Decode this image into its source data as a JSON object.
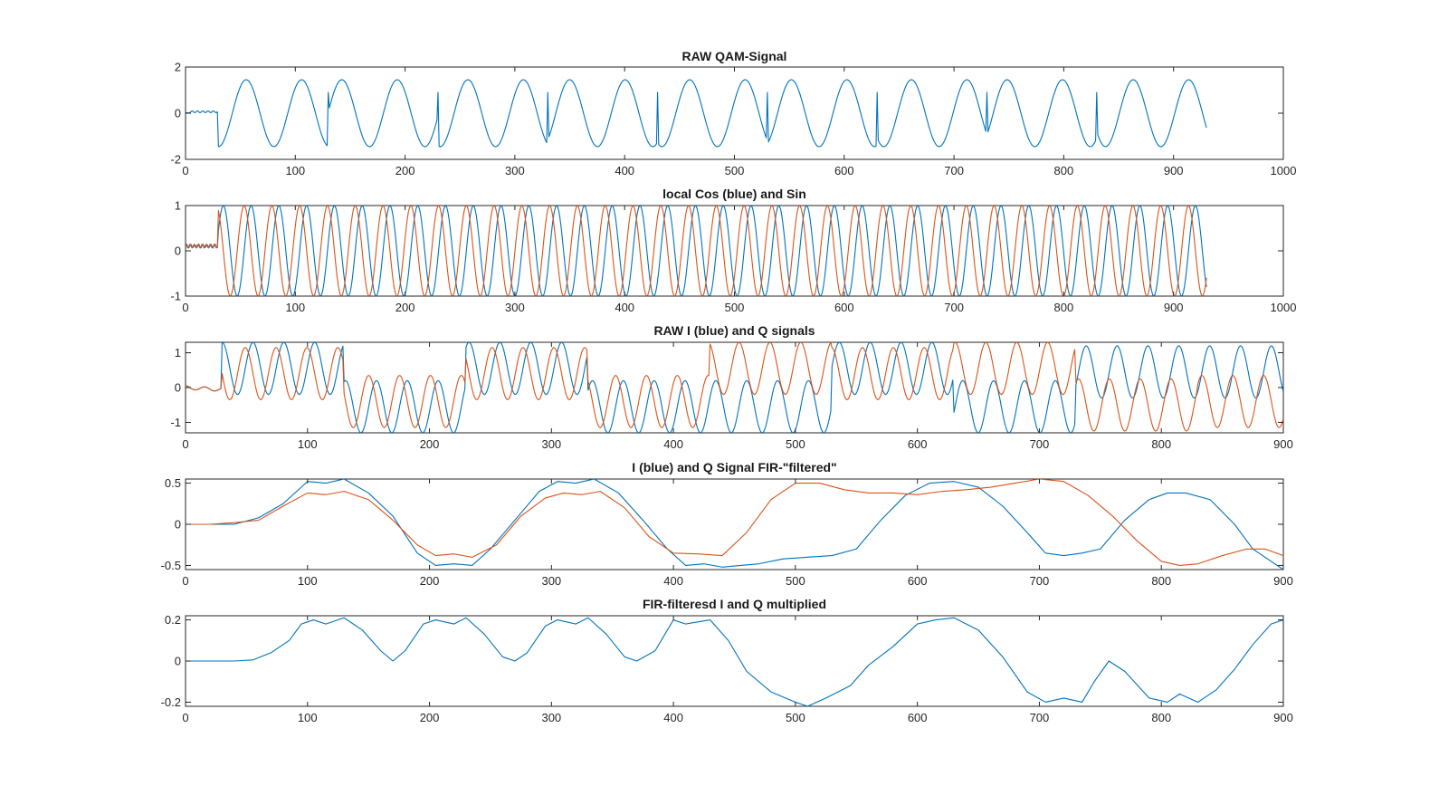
{
  "figure": {
    "background": "#ffffff"
  },
  "chart_data": [
    {
      "type": "line",
      "title": "RAW QAM-Signal",
      "xlim": [
        0,
        1000
      ],
      "ylim": [
        -2,
        2
      ],
      "xticks": [
        0,
        100,
        200,
        300,
        400,
        500,
        600,
        700,
        800,
        900,
        1000
      ],
      "yticks": [
        -2,
        0,
        2
      ],
      "grid": false,
      "legend": "none",
      "series": [
        {
          "color": "#0072BD",
          "signal": {
            "model": "qam_raw",
            "x_start": 0,
            "x_end": 930,
            "step": 1,
            "startup_end": 30,
            "startup_level": 0.1,
            "amplitude": 1.45,
            "period": 50.5,
            "jump_x": [
              130,
              230,
              330,
              430,
              530,
              630,
              730,
              830
            ]
          }
        }
      ]
    },
    {
      "type": "line",
      "title": "local Cos (blue) and Sin",
      "xlim": [
        0,
        1000
      ],
      "ylim": [
        -1,
        1
      ],
      "xticks": [
        0,
        100,
        200,
        300,
        400,
        500,
        600,
        700,
        800,
        900,
        1000
      ],
      "yticks": [
        -1,
        0,
        1
      ],
      "grid": false,
      "legend": "none",
      "series": [
        {
          "color": "#0072BD",
          "signal": {
            "model": "local_cos",
            "x_start": 0,
            "x_end": 930,
            "step": 1,
            "startup_end": 30,
            "startup_level": 0.15,
            "amplitude": 1,
            "period": 25.3
          }
        },
        {
          "color": "#D95319",
          "signal": {
            "model": "local_sin",
            "x_start": 0,
            "x_end": 930,
            "step": 1,
            "startup_end": 30,
            "startup_level": 0.15,
            "amplitude": 1,
            "period": 25.3
          }
        }
      ]
    },
    {
      "type": "line",
      "title": "RAW I (blue) and Q signals",
      "xlim": [
        0,
        900
      ],
      "ylim": [
        -1.3,
        1.3
      ],
      "xticks": [
        0,
        100,
        200,
        300,
        400,
        500,
        600,
        700,
        800,
        900
      ],
      "yticks": [
        -1,
        0,
        1
      ],
      "grid": false,
      "legend": "none",
      "series": [
        {
          "color": "#0072BD",
          "signal": {
            "model": "raw_i",
            "x_start": 0,
            "x_end": 900,
            "step": 1,
            "symbol_breaks": [
              30,
              130,
              230,
              330,
              430,
              530,
              630,
              730,
              830,
              900
            ],
            "symbol_levels": [
              0.55,
              -0.55,
              0.55,
              -0.55,
              -0.55,
              0.55,
              -0.55,
              0.45,
              0.45
            ],
            "period": 25.3
          }
        },
        {
          "color": "#D95319",
          "signal": {
            "model": "raw_q",
            "x_start": 0,
            "x_end": 900,
            "step": 1,
            "symbol_breaks": [
              30,
              130,
              230,
              330,
              430,
              530,
              630,
              730,
              830,
              900
            ],
            "symbol_levels": [
              0.4,
              -0.4,
              0.4,
              -0.4,
              0.55,
              0.4,
              0.55,
              -0.5,
              -0.4
            ],
            "period": 25.3
          }
        }
      ]
    },
    {
      "type": "line",
      "title": "I (blue) and Q Signal FIR-\"filtered\"",
      "xlim": [
        0,
        900
      ],
      "ylim": [
        -0.55,
        0.55
      ],
      "xticks": [
        0,
        100,
        200,
        300,
        400,
        500,
        600,
        700,
        800,
        900
      ],
      "yticks": [
        -0.5,
        0,
        0.5
      ],
      "grid": false,
      "legend": "none",
      "series": [
        {
          "color": "#0072BD",
          "points": [
            [
              0,
              0
            ],
            [
              20,
              0
            ],
            [
              40,
              0
            ],
            [
              60,
              0.08
            ],
            [
              80,
              0.25
            ],
            [
              100,
              0.52
            ],
            [
              115,
              0.5
            ],
            [
              130,
              0.55
            ],
            [
              150,
              0.38
            ],
            [
              170,
              0.1
            ],
            [
              190,
              -0.35
            ],
            [
              205,
              -0.5
            ],
            [
              220,
              -0.48
            ],
            [
              235,
              -0.5
            ],
            [
              250,
              -0.3
            ],
            [
              270,
              0.05
            ],
            [
              290,
              0.4
            ],
            [
              305,
              0.52
            ],
            [
              320,
              0.5
            ],
            [
              335,
              0.55
            ],
            [
              355,
              0.38
            ],
            [
              375,
              0.05
            ],
            [
              395,
              -0.3
            ],
            [
              410,
              -0.5
            ],
            [
              425,
              -0.48
            ],
            [
              440,
              -0.52
            ],
            [
              455,
              -0.5
            ],
            [
              470,
              -0.48
            ],
            [
              490,
              -0.42
            ],
            [
              510,
              -0.4
            ],
            [
              530,
              -0.38
            ],
            [
              550,
              -0.3
            ],
            [
              570,
              0.05
            ],
            [
              590,
              0.35
            ],
            [
              610,
              0.5
            ],
            [
              630,
              0.52
            ],
            [
              650,
              0.45
            ],
            [
              670,
              0.22
            ],
            [
              690,
              -0.1
            ],
            [
              705,
              -0.35
            ],
            [
              720,
              -0.38
            ],
            [
              735,
              -0.35
            ],
            [
              750,
              -0.3
            ],
            [
              770,
              0.05
            ],
            [
              790,
              0.3
            ],
            [
              805,
              0.38
            ],
            [
              820,
              0.38
            ],
            [
              840,
              0.3
            ],
            [
              860,
              0.0
            ],
            [
              875,
              -0.3
            ],
            [
              890,
              -0.45
            ],
            [
              900,
              -0.55
            ]
          ]
        },
        {
          "color": "#D95319",
          "points": [
            [
              0,
              0
            ],
            [
              20,
              0
            ],
            [
              40,
              0.02
            ],
            [
              60,
              0.05
            ],
            [
              80,
              0.22
            ],
            [
              100,
              0.38
            ],
            [
              115,
              0.36
            ],
            [
              130,
              0.4
            ],
            [
              150,
              0.3
            ],
            [
              170,
              0.05
            ],
            [
              190,
              -0.25
            ],
            [
              205,
              -0.38
            ],
            [
              220,
              -0.36
            ],
            [
              235,
              -0.4
            ],
            [
              255,
              -0.25
            ],
            [
              275,
              0.1
            ],
            [
              295,
              0.32
            ],
            [
              310,
              0.38
            ],
            [
              325,
              0.36
            ],
            [
              340,
              0.4
            ],
            [
              360,
              0.2
            ],
            [
              380,
              -0.15
            ],
            [
              400,
              -0.35
            ],
            [
              420,
              -0.36
            ],
            [
              440,
              -0.38
            ],
            [
              460,
              -0.1
            ],
            [
              480,
              0.3
            ],
            [
              500,
              0.5
            ],
            [
              520,
              0.5
            ],
            [
              540,
              0.42
            ],
            [
              560,
              0.38
            ],
            [
              580,
              0.38
            ],
            [
              600,
              0.36
            ],
            [
              620,
              0.4
            ],
            [
              640,
              0.42
            ],
            [
              660,
              0.45
            ],
            [
              680,
              0.5
            ],
            [
              700,
              0.55
            ],
            [
              720,
              0.52
            ],
            [
              740,
              0.35
            ],
            [
              760,
              0.1
            ],
            [
              780,
              -0.2
            ],
            [
              800,
              -0.45
            ],
            [
              815,
              -0.5
            ],
            [
              830,
              -0.48
            ],
            [
              850,
              -0.38
            ],
            [
              870,
              -0.3
            ],
            [
              885,
              -0.3
            ],
            [
              900,
              -0.38
            ]
          ]
        }
      ]
    },
    {
      "type": "line",
      "title": "FIR-filteresd I and Q multiplied",
      "xlim": [
        0,
        900
      ],
      "ylim": [
        -0.22,
        0.22
      ],
      "xticks": [
        0,
        100,
        200,
        300,
        400,
        500,
        600,
        700,
        800,
        900
      ],
      "yticks": [
        -0.2,
        0,
        0.2
      ],
      "grid": false,
      "legend": "none",
      "series": [
        {
          "color": "#0072BD",
          "points": [
            [
              0,
              0
            ],
            [
              20,
              0
            ],
            [
              40,
              0
            ],
            [
              55,
              0.005
            ],
            [
              70,
              0.04
            ],
            [
              85,
              0.1
            ],
            [
              95,
              0.18
            ],
            [
              105,
              0.2
            ],
            [
              115,
              0.18
            ],
            [
              130,
              0.21
            ],
            [
              145,
              0.15
            ],
            [
              160,
              0.05
            ],
            [
              170,
              0.0
            ],
            [
              180,
              0.05
            ],
            [
              195,
              0.18
            ],
            [
              205,
              0.2
            ],
            [
              220,
              0.18
            ],
            [
              230,
              0.21
            ],
            [
              245,
              0.13
            ],
            [
              260,
              0.02
            ],
            [
              270,
              0.0
            ],
            [
              280,
              0.04
            ],
            [
              295,
              0.17
            ],
            [
              305,
              0.2
            ],
            [
              320,
              0.18
            ],
            [
              330,
              0.21
            ],
            [
              345,
              0.13
            ],
            [
              360,
              0.02
            ],
            [
              370,
              0.0
            ],
            [
              385,
              0.05
            ],
            [
              400,
              0.2
            ],
            [
              410,
              0.18
            ],
            [
              430,
              0.2
            ],
            [
              445,
              0.1
            ],
            [
              460,
              -0.05
            ],
            [
              480,
              -0.15
            ],
            [
              500,
              -0.2
            ],
            [
              510,
              -0.22
            ],
            [
              525,
              -0.18
            ],
            [
              545,
              -0.12
            ],
            [
              560,
              -0.02
            ],
            [
              580,
              0.07
            ],
            [
              600,
              0.18
            ],
            [
              615,
              0.2
            ],
            [
              630,
              0.21
            ],
            [
              650,
              0.15
            ],
            [
              670,
              0.02
            ],
            [
              690,
              -0.15
            ],
            [
              705,
              -0.2
            ],
            [
              720,
              -0.18
            ],
            [
              735,
              -0.2
            ],
            [
              745,
              -0.1
            ],
            [
              757,
              0.0
            ],
            [
              770,
              -0.05
            ],
            [
              790,
              -0.18
            ],
            [
              805,
              -0.2
            ],
            [
              815,
              -0.16
            ],
            [
              830,
              -0.2
            ],
            [
              845,
              -0.14
            ],
            [
              860,
              -0.04
            ],
            [
              875,
              0.08
            ],
            [
              890,
              0.18
            ],
            [
              900,
              0.2
            ]
          ]
        }
      ]
    }
  ]
}
